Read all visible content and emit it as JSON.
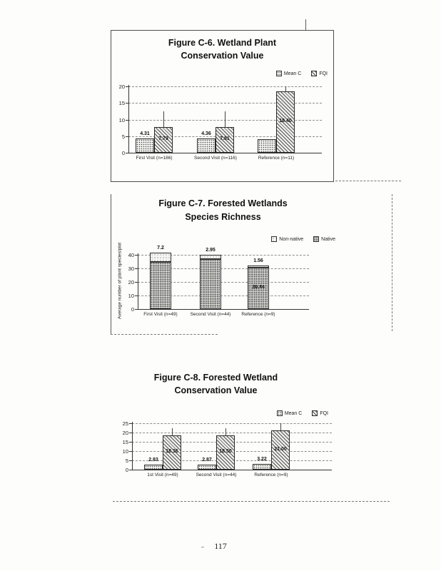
{
  "page_number": "117",
  "chart_data": [
    {
      "type": "bar",
      "title_lines": [
        "Figure C-6.  Wetland Plant",
        "Conservation Value"
      ],
      "legend": [
        "Mean C",
        "FQI"
      ],
      "categories": [
        "First Visit (n=186)",
        "Second Visit (n=116)",
        "Reference (n=11)"
      ],
      "series": [
        {
          "name": "Mean C",
          "values": [
            4.31,
            4.36,
            4.1
          ],
          "labels": [
            "4.31",
            "4.36",
            ""
          ]
        },
        {
          "name": "FQI",
          "values": [
            7.79,
            7.81,
            18.4
          ],
          "labels": [
            "7.79",
            "7.81",
            "18.40"
          ]
        }
      ],
      "ylabel": "",
      "ylim": [
        0,
        20
      ],
      "yticks": [
        0,
        5,
        10,
        15,
        20
      ],
      "grid": "dashed",
      "legend_position": "top-right"
    },
    {
      "type": "bar-stacked",
      "title_lines": [
        "Figure C-7.  Forested Wetlands",
        "Species Richness"
      ],
      "legend": [
        "Non-native",
        "Native"
      ],
      "categories": [
        "First Visit (n=49)",
        "Second Visit (n=44)",
        "Reference (n=9)"
      ],
      "series": [
        {
          "name": "Non-native",
          "values": [
            7.2,
            2.95,
            1.56
          ],
          "labels": [
            "7.2",
            "2.95",
            "1.56"
          ]
        },
        {
          "name": "Native",
          "values": [
            34.6,
            37.0,
            30.44
          ],
          "labels": [
            "",
            "",
            "30.44"
          ]
        }
      ],
      "ylabel": "Average number of plant species/plot",
      "ylim": [
        0,
        40
      ],
      "yticks": [
        0,
        10,
        20,
        30,
        40
      ],
      "grid": "dashed",
      "legend_position": "top-right"
    },
    {
      "type": "bar",
      "title_lines": [
        "Figure C-8.  Forested Wetland",
        "Conservation Value"
      ],
      "legend": [
        "Mean C",
        "FQI"
      ],
      "categories": [
        "1st Visit (n=49)",
        "Second Visit (n=44)",
        "Reference (n=9)"
      ],
      "series": [
        {
          "name": "Mean C",
          "values": [
            2.83,
            2.87,
            3.22
          ],
          "labels": [
            "2.83",
            "2.87",
            "3.22"
          ]
        },
        {
          "name": "FQI",
          "values": [
            18.36,
            18.5,
            21.0
          ],
          "labels": [
            "18.36",
            "18.50",
            "21.00"
          ]
        }
      ],
      "ylabel": "",
      "ylim": [
        0,
        25
      ],
      "yticks": [
        0,
        5,
        10,
        15,
        20,
        25
      ],
      "grid": "dashed",
      "legend_position": "top-right"
    }
  ]
}
